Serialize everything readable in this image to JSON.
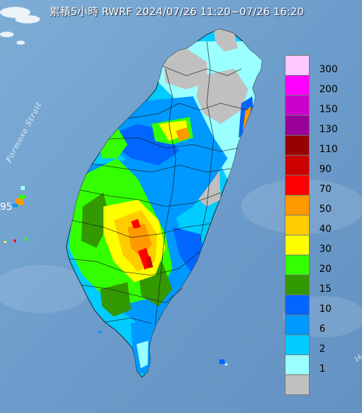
{
  "title": "累積5小時 RWRF 2024/07/26 11:20~07/26 16:20",
  "strait_label": "Formosa Strait",
  "edge_value": "95",
  "corner_text": "16",
  "legend": {
    "levels": [
      {
        "label": "300",
        "color": "#ffc8ff"
      },
      {
        "label": "200",
        "color": "#ff00ff"
      },
      {
        "label": "150",
        "color": "#cc00cc"
      },
      {
        "label": "130",
        "color": "#990099"
      },
      {
        "label": "110",
        "color": "#990000"
      },
      {
        "label": "90",
        "color": "#cc0000"
      },
      {
        "label": "70",
        "color": "#ff0000"
      },
      {
        "label": "50",
        "color": "#ff9900"
      },
      {
        "label": "40",
        "color": "#ffcc00"
      },
      {
        "label": "30",
        "color": "#ffff00"
      },
      {
        "label": "20",
        "color": "#33ff00"
      },
      {
        "label": "15",
        "color": "#339900"
      },
      {
        "label": "10",
        "color": "#0066ff"
      },
      {
        "label": "6",
        "color": "#0099ff"
      },
      {
        "label": "2",
        "color": "#00ccff"
      },
      {
        "label": "1",
        "color": "#99ffff"
      },
      {
        "label": "",
        "color": "#c0c0c0"
      }
    ]
  }
}
